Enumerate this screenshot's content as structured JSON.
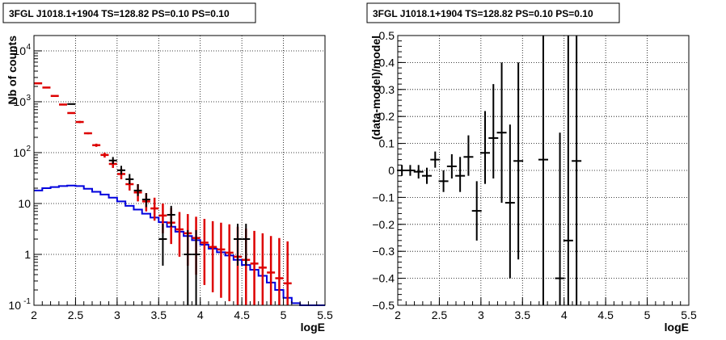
{
  "chart_data": [
    {
      "type": "scatter",
      "title": "3FGL J1018.1+1904 TS=128.82 PS=0.10 PS=0.10",
      "xlabel": "logE",
      "ylabel": "Nb of counts",
      "xlim": [
        2,
        5.5
      ],
      "ylim": [
        0.1,
        20000
      ],
      "yscale": "log",
      "grid": true,
      "x_ticks": [
        "2",
        "2.5",
        "3",
        "3.5",
        "4",
        "4.5",
        "5",
        "5.5"
      ],
      "y_ticks": [
        {
          "v": 0.1,
          "label": "10",
          "sup": "-1"
        },
        {
          "v": 1,
          "label": "1",
          "sup": ""
        },
        {
          "v": 10,
          "label": "10",
          "sup": ""
        },
        {
          "v": 100,
          "label": "10",
          "sup": "2"
        },
        {
          "v": 1000,
          "label": "10",
          "sup": "3"
        },
        {
          "v": 10000,
          "label": "10",
          "sup": "4"
        }
      ],
      "series": [
        {
          "kind": "histogram",
          "color": "#0000dd",
          "bin_width": 0.1,
          "bins_x": [
            2.0,
            2.1,
            2.2,
            2.3,
            2.4,
            2.5,
            2.6,
            2.7,
            2.8,
            2.9,
            3.0,
            3.1,
            3.2,
            3.3,
            3.4,
            3.5,
            3.6,
            3.7,
            3.8,
            3.9,
            4.0,
            4.1,
            4.2,
            4.3,
            4.4,
            4.5,
            4.6,
            4.7,
            4.8,
            4.9,
            5.0,
            5.1,
            5.2,
            5.3,
            5.4
          ],
          "values": [
            18,
            20,
            21,
            22,
            22.5,
            22,
            19.5,
            17,
            15,
            13,
            11,
            9,
            7.6,
            6.3,
            5.3,
            4.3,
            3.5,
            2.8,
            2.3,
            1.9,
            1.55,
            1.3,
            1.1,
            0.95,
            0.78,
            0.62,
            0.5,
            0.38,
            0.28,
            0.2,
            0.14,
            0.11,
            0.1,
            0.1,
            0.1
          ]
        },
        {
          "kind": "points",
          "color": "#dd0000",
          "x": [
            2.05,
            2.15,
            2.25,
            2.35,
            2.45,
            2.55,
            2.65,
            2.75,
            2.85,
            2.95,
            3.05,
            3.15,
            3.25,
            3.35,
            3.45,
            3.55,
            3.65,
            3.75,
            3.85,
            3.95,
            4.05,
            4.15,
            4.25,
            4.35,
            4.45,
            4.55,
            4.65,
            4.75,
            4.85,
            4.95,
            5.05
          ],
          "y": [
            2300,
            1900,
            1300,
            880,
            600,
            400,
            240,
            140,
            90,
            60,
            38,
            24,
            16.5,
            11,
            8,
            5.8,
            4.2,
            3.1,
            2.6,
            2.1,
            1.7,
            1.4,
            1.25,
            1.08,
            0.9,
            0.78,
            0.66,
            0.55,
            0.44,
            0.34,
            0.27
          ],
          "ylow": [
            2300,
            1900,
            1300,
            860,
            580,
            380,
            230,
            130,
            80,
            50,
            30,
            18,
            11,
            7,
            4.6,
            2.6,
            1.6,
            0.9,
            0.6,
            0.4,
            0.25,
            0.18,
            0.14,
            0.12,
            0.1,
            0.1,
            0.1,
            0.1,
            0.1,
            0.1,
            0.1
          ],
          "yhigh": [
            2300,
            1900,
            1300,
            900,
            620,
            420,
            250,
            150,
            100,
            70,
            48,
            32,
            24,
            16,
            13,
            10,
            8.2,
            6.8,
            6.2,
            5.5,
            5,
            4.5,
            4.2,
            3.9,
            3.5,
            3.2,
            2.9,
            2.6,
            2.3,
            2.1,
            1.8
          ]
        },
        {
          "kind": "points",
          "color": "#000000",
          "x": [
            2.45,
            2.95,
            3.05,
            3.15,
            3.25,
            3.35,
            3.55,
            3.65,
            3.85,
            3.95,
            4.45,
            4.55
          ],
          "y": [
            900,
            70,
            45,
            30,
            18,
            12,
            2,
            6,
            1,
            1,
            2,
            2
          ],
          "ylow": [
            880,
            60,
            37,
            24,
            14,
            8.5,
            0.6,
            3.5,
            0.1,
            0.1,
            0.6,
            0.6
          ],
          "yhigh": [
            920,
            82,
            55,
            38,
            24,
            16,
            4,
            9,
            3,
            3,
            4,
            4
          ]
        }
      ]
    },
    {
      "type": "scatter",
      "title": "3FGL J1018.1+1904 TS=128.82 PS=0.10 PS=0.10",
      "xlabel": "logE",
      "ylabel": "(data-model)/model",
      "xlim": [
        2,
        5.5
      ],
      "ylim": [
        -0.5,
        0.5
      ],
      "grid": true,
      "x_ticks": [
        "2",
        "2.5",
        "3",
        "3.5",
        "4",
        "4.5",
        "5",
        "5.5"
      ],
      "y_ticks": [
        "−0.5",
        "−0.4",
        "−0.3",
        "−0.2",
        "−0.1",
        "0",
        "0.1",
        "0.2",
        "0.3",
        "0.4",
        "0.5"
      ],
      "series": [
        {
          "kind": "points",
          "color": "#000000",
          "x": [
            2.05,
            2.15,
            2.25,
            2.35,
            2.45,
            2.55,
            2.65,
            2.75,
            2.85,
            2.95,
            3.05,
            3.15,
            3.25,
            3.35,
            3.45,
            3.75,
            3.95,
            4.05,
            4.15
          ],
          "y": [
            0.0,
            0.0,
            -0.005,
            -0.02,
            0.04,
            -0.04,
            0.015,
            -0.02,
            0.05,
            -0.15,
            0.065,
            0.12,
            0.14,
            -0.12,
            0.035,
            0.04,
            -0.4,
            -0.26,
            0.035
          ],
          "ylow": [
            -0.02,
            -0.02,
            -0.03,
            -0.05,
            0.01,
            -0.08,
            -0.03,
            -0.08,
            -0.02,
            -0.26,
            -0.05,
            -0.03,
            -0.12,
            -0.4,
            -0.33,
            -0.5,
            -0.5,
            -0.5,
            -0.5
          ],
          "yhigh": [
            0.02,
            0.02,
            0.02,
            0.01,
            0.07,
            0.0,
            0.06,
            0.05,
            0.13,
            -0.04,
            0.22,
            0.32,
            0.4,
            0.17,
            0.4,
            0.5,
            0.14,
            0.5,
            0.5
          ]
        }
      ]
    }
  ]
}
